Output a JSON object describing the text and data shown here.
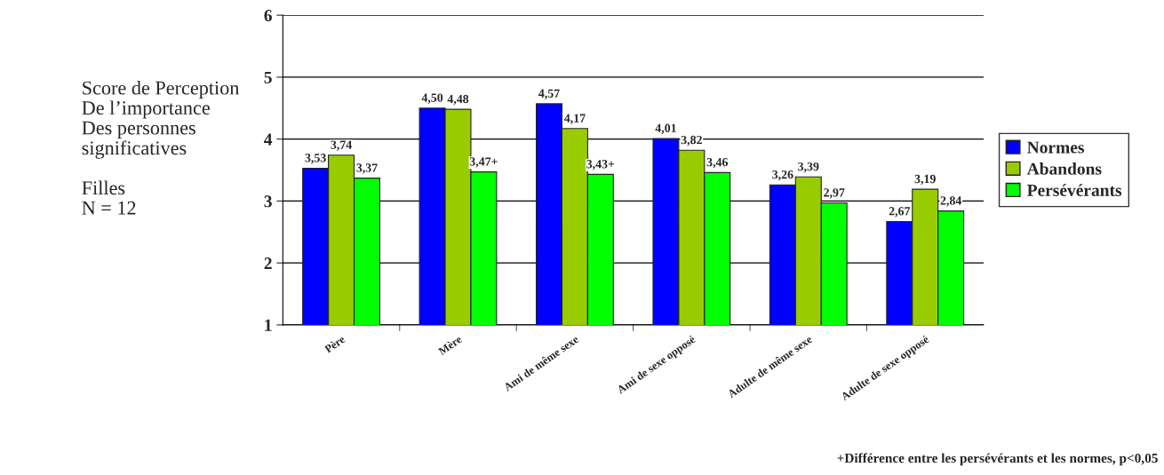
{
  "chart_data": {
    "type": "bar",
    "categories": [
      "Père",
      "Mère",
      "Ami de même sexe",
      "Ami de sexe opposé",
      "Adulte de même sexe",
      "Adulte de sexe opposé"
    ],
    "series": [
      {
        "name": "Normes",
        "color": "#0000ff",
        "values": [
          3.53,
          4.5,
          4.57,
          4.01,
          3.26,
          2.67
        ],
        "value_labels": [
          "3,53",
          "4,50",
          "4,57",
          "4,01",
          "3,26",
          "2,67"
        ]
      },
      {
        "name": "Abandons",
        "color": "#99cc00",
        "values": [
          3.74,
          4.48,
          4.17,
          3.82,
          3.39,
          3.19
        ],
        "value_labels": [
          "3,74",
          "4,48",
          "4,17",
          "3,82",
          "3,39",
          "3,19"
        ]
      },
      {
        "name": "Persévérants",
        "color": "#00ff00",
        "values": [
          3.37,
          3.47,
          3.43,
          3.46,
          2.97,
          2.84
        ],
        "value_labels": [
          "3,37",
          "3,47+",
          "3,43+",
          "3,46",
          "2,97",
          "2,84"
        ]
      }
    ],
    "ylim": [
      1,
      6
    ],
    "yticks": [
      1,
      2,
      3,
      4,
      5,
      6
    ],
    "grid": "y",
    "legend": "right",
    "annotations": [
      "Score de Perception\nDe l’importance\nDes personnes\nsignificatives\n\nFilles\nN = 12",
      "+Différence entre les persévérants et les normes, p<0,05"
    ]
  }
}
